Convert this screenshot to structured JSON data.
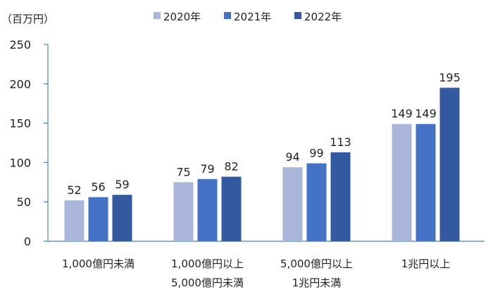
{
  "chart_data": {
    "type": "bar",
    "unit": "（百万円）",
    "categories": [
      [
        "1,000億円未満"
      ],
      [
        "1,000億円以上",
        "5,000億円未満"
      ],
      [
        "5,000億円以上",
        "1兆円未満"
      ],
      [
        "1兆円以上"
      ]
    ],
    "series": [
      {
        "name": "2020年",
        "color": "#a9b5d9",
        "values": [
          52,
          75,
          94,
          149
        ]
      },
      {
        "name": "2021年",
        "color": "#4472c4",
        "values": [
          56,
          79,
          99,
          149
        ]
      },
      {
        "name": "2022年",
        "color": "#335aa0",
        "values": [
          59,
          82,
          113,
          195
        ]
      }
    ],
    "ylim": [
      0,
      250
    ],
    "yticks": [
      0,
      50,
      100,
      150,
      200,
      250
    ],
    "legend_position": "top",
    "grid": false,
    "axis_color": "#4a7ebb"
  }
}
